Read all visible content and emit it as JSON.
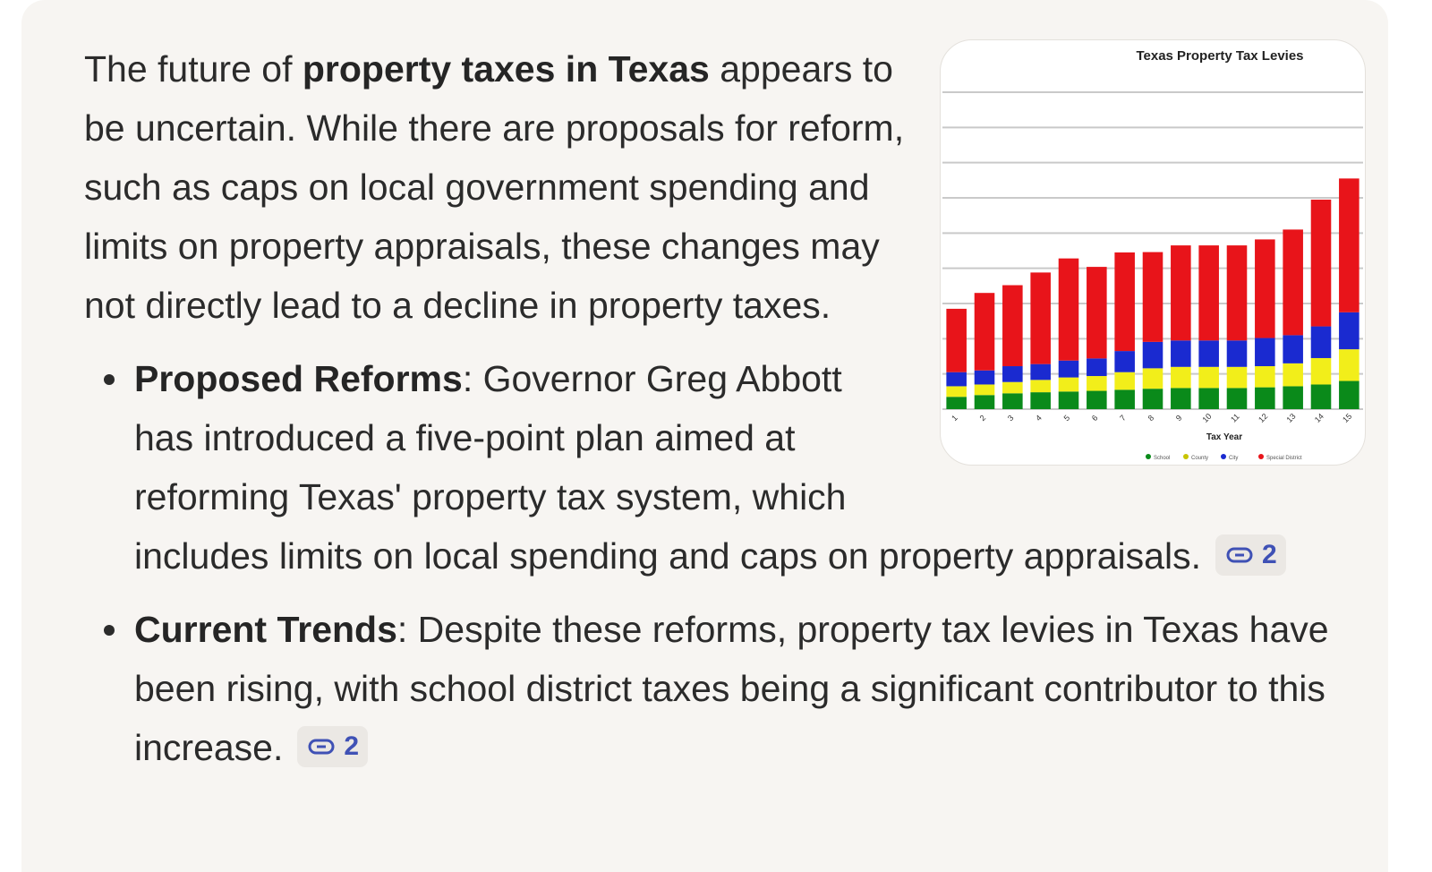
{
  "intro": {
    "before": "The future of ",
    "bold": "property taxes in Texas",
    "after": " appears to be uncertain. While there are proposals for reform, such as caps on local government spending and limits on property appraisals, these changes may not directly lead to a decline in property taxes."
  },
  "bullets": [
    {
      "term": "Proposed Reforms",
      "text": ": Governor Greg Abbott has introduced a five-point plan aimed at reforming Texas' property tax system, which includes limits on local spending and caps on property appraisals.",
      "citation_count": "2",
      "citation_icon": "link-icon"
    },
    {
      "term": "Current Trends",
      "text": ": Despite these reforms, property tax levies in Texas have been rising, with school district taxes being a significant contributor to this increase.",
      "citation_count": "2",
      "citation_icon": "link-icon"
    }
  ],
  "chart_data": {
    "type": "bar",
    "stacked": true,
    "title": "Texas Property Tax Levies",
    "xlabel": "Tax Year",
    "ylabel": "",
    "ylim": [
      0,
      90
    ],
    "grid": true,
    "categories": [
      "1",
      "2",
      "3",
      "4",
      "5",
      "6",
      "7",
      "8",
      "9",
      "10",
      "11",
      "12",
      "13",
      "14",
      "15"
    ],
    "series": [
      {
        "name": "School",
        "color": "#0a8a1a",
        "values": [
          3.5,
          4.0,
          4.5,
          4.8,
          5.0,
          5.2,
          5.5,
          5.8,
          6.0,
          6.0,
          6.0,
          6.2,
          6.5,
          7.0,
          8.0
        ]
      },
      {
        "name": "County",
        "color": "#f2ee1a",
        "values": [
          3.0,
          3.0,
          3.2,
          3.5,
          4.0,
          4.2,
          5.0,
          5.8,
          6.0,
          6.0,
          6.0,
          6.0,
          6.5,
          7.5,
          9.0
        ]
      },
      {
        "name": "City",
        "color": "#1a2ad0",
        "values": [
          4.0,
          4.0,
          4.5,
          4.5,
          4.8,
          5.0,
          6.0,
          7.5,
          7.5,
          7.5,
          7.5,
          8.0,
          8.0,
          9.0,
          10.5
        ]
      },
      {
        "name": "Special District",
        "color": "#e8141a",
        "values": [
          18.0,
          22.0,
          23.0,
          26.0,
          29.0,
          26.0,
          28.0,
          25.5,
          27.0,
          27.0,
          27.0,
          28.0,
          30.0,
          36.0,
          38.0
        ]
      }
    ]
  }
}
